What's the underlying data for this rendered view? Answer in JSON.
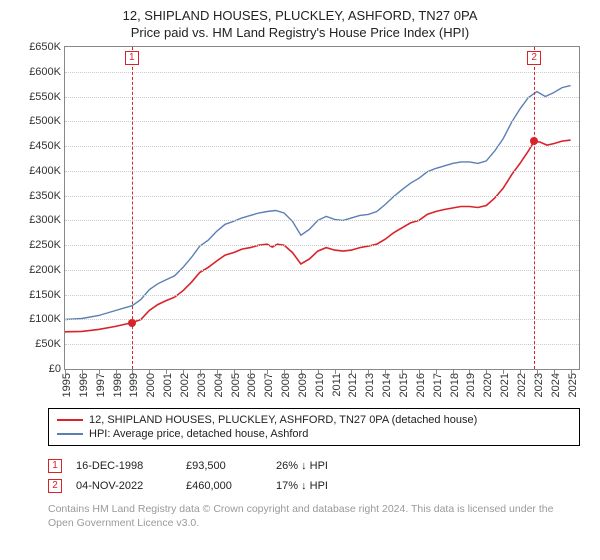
{
  "title": {
    "line1": "12, SHIPLAND HOUSES, PLUCKLEY, ASHFORD, TN27 0PA",
    "line2": "Price paid vs. HM Land Registry's House Price Index (HPI)",
    "fontsize": 13,
    "color": "#222222"
  },
  "chart": {
    "type": "line",
    "background_color": "#ffffff",
    "grid_color": "#cccccc",
    "axis_color": "#888888",
    "tick_fontsize": 11,
    "ylim": [
      0,
      650000
    ],
    "ytick_step": 50000,
    "yticks": [
      {
        "v": 0,
        "label": "£0"
      },
      {
        "v": 50000,
        "label": "£50K"
      },
      {
        "v": 100000,
        "label": "£100K"
      },
      {
        "v": 150000,
        "label": "£150K"
      },
      {
        "v": 200000,
        "label": "£200K"
      },
      {
        "v": 250000,
        "label": "£250K"
      },
      {
        "v": 300000,
        "label": "£300K"
      },
      {
        "v": 350000,
        "label": "£350K"
      },
      {
        "v": 400000,
        "label": "£400K"
      },
      {
        "v": 450000,
        "label": "£450K"
      },
      {
        "v": 500000,
        "label": "£500K"
      },
      {
        "v": 550000,
        "label": "£550K"
      },
      {
        "v": 600000,
        "label": "£600K"
      },
      {
        "v": 650000,
        "label": "£650K"
      }
    ],
    "xlim": [
      1995,
      2025.5
    ],
    "xticks": [
      1995,
      1996,
      1997,
      1998,
      1999,
      2000,
      2001,
      2002,
      2003,
      2004,
      2005,
      2006,
      2007,
      2008,
      2009,
      2010,
      2011,
      2012,
      2013,
      2014,
      2015,
      2016,
      2017,
      2018,
      2019,
      2020,
      2021,
      2022,
      2023,
      2024,
      2025
    ],
    "series": [
      {
        "name": "price_paid",
        "label": "12, SHIPLAND HOUSES, PLUCKLEY, ASHFORD, TN27 0PA (detached house)",
        "color": "#d8232a",
        "line_width": 1.6,
        "points": [
          [
            1995.0,
            75000
          ],
          [
            1996.0,
            76000
          ],
          [
            1997.0,
            80000
          ],
          [
            1998.0,
            86000
          ],
          [
            1998.96,
            93500
          ],
          [
            1999.5,
            100000
          ],
          [
            2000.0,
            118000
          ],
          [
            2000.5,
            130000
          ],
          [
            2001.0,
            138000
          ],
          [
            2001.5,
            145000
          ],
          [
            2002.0,
            158000
          ],
          [
            2002.5,
            175000
          ],
          [
            2003.0,
            195000
          ],
          [
            2003.5,
            205000
          ],
          [
            2004.0,
            218000
          ],
          [
            2004.5,
            230000
          ],
          [
            2005.0,
            235000
          ],
          [
            2005.5,
            242000
          ],
          [
            2006.0,
            245000
          ],
          [
            2006.5,
            250000
          ],
          [
            2007.0,
            252000
          ],
          [
            2007.3,
            246000
          ],
          [
            2007.6,
            252000
          ],
          [
            2008.0,
            250000
          ],
          [
            2008.5,
            235000
          ],
          [
            2009.0,
            212000
          ],
          [
            2009.5,
            222000
          ],
          [
            2010.0,
            238000
          ],
          [
            2010.5,
            245000
          ],
          [
            2011.0,
            240000
          ],
          [
            2011.5,
            238000
          ],
          [
            2012.0,
            240000
          ],
          [
            2012.5,
            245000
          ],
          [
            2013.0,
            248000
          ],
          [
            2013.5,
            252000
          ],
          [
            2014.0,
            262000
          ],
          [
            2014.5,
            275000
          ],
          [
            2015.0,
            285000
          ],
          [
            2015.5,
            295000
          ],
          [
            2016.0,
            300000
          ],
          [
            2016.5,
            312000
          ],
          [
            2017.0,
            318000
          ],
          [
            2017.5,
            322000
          ],
          [
            2018.0,
            325000
          ],
          [
            2018.5,
            328000
          ],
          [
            2019.0,
            328000
          ],
          [
            2019.5,
            326000
          ],
          [
            2020.0,
            330000
          ],
          [
            2020.5,
            345000
          ],
          [
            2021.0,
            365000
          ],
          [
            2021.5,
            392000
          ],
          [
            2022.0,
            415000
          ],
          [
            2022.5,
            440000
          ],
          [
            2022.84,
            460000
          ],
          [
            2023.2,
            458000
          ],
          [
            2023.6,
            452000
          ],
          [
            2024.0,
            455000
          ],
          [
            2024.5,
            460000
          ],
          [
            2025.0,
            462000
          ]
        ]
      },
      {
        "name": "hpi",
        "label": "HPI: Average price, detached house, Ashford",
        "color": "#5b7fb5",
        "line_width": 1.4,
        "points": [
          [
            1995.0,
            100000
          ],
          [
            1996.0,
            102000
          ],
          [
            1997.0,
            108000
          ],
          [
            1998.0,
            118000
          ],
          [
            1999.0,
            128000
          ],
          [
            1999.5,
            140000
          ],
          [
            2000.0,
            160000
          ],
          [
            2000.5,
            172000
          ],
          [
            2001.0,
            180000
          ],
          [
            2001.5,
            188000
          ],
          [
            2002.0,
            205000
          ],
          [
            2002.5,
            225000
          ],
          [
            2003.0,
            248000
          ],
          [
            2003.5,
            260000
          ],
          [
            2004.0,
            278000
          ],
          [
            2004.5,
            292000
          ],
          [
            2005.0,
            298000
          ],
          [
            2005.5,
            305000
          ],
          [
            2006.0,
            310000
          ],
          [
            2006.5,
            315000
          ],
          [
            2007.0,
            318000
          ],
          [
            2007.5,
            320000
          ],
          [
            2008.0,
            315000
          ],
          [
            2008.5,
            298000
          ],
          [
            2009.0,
            270000
          ],
          [
            2009.5,
            282000
          ],
          [
            2010.0,
            300000
          ],
          [
            2010.5,
            308000
          ],
          [
            2011.0,
            302000
          ],
          [
            2011.5,
            300000
          ],
          [
            2012.0,
            305000
          ],
          [
            2012.5,
            310000
          ],
          [
            2013.0,
            312000
          ],
          [
            2013.5,
            318000
          ],
          [
            2014.0,
            332000
          ],
          [
            2014.5,
            348000
          ],
          [
            2015.0,
            362000
          ],
          [
            2015.5,
            375000
          ],
          [
            2016.0,
            385000
          ],
          [
            2016.5,
            398000
          ],
          [
            2017.0,
            405000
          ],
          [
            2017.5,
            410000
          ],
          [
            2018.0,
            415000
          ],
          [
            2018.5,
            418000
          ],
          [
            2019.0,
            418000
          ],
          [
            2019.5,
            415000
          ],
          [
            2020.0,
            420000
          ],
          [
            2020.5,
            440000
          ],
          [
            2021.0,
            465000
          ],
          [
            2021.5,
            498000
          ],
          [
            2022.0,
            525000
          ],
          [
            2022.5,
            548000
          ],
          [
            2023.0,
            560000
          ],
          [
            2023.5,
            550000
          ],
          [
            2024.0,
            558000
          ],
          [
            2024.5,
            568000
          ],
          [
            2025.0,
            572000
          ]
        ]
      }
    ],
    "markers": [
      {
        "id": "1",
        "x": 1998.96,
        "y": 93500,
        "color": "#d8232a"
      },
      {
        "id": "2",
        "x": 2022.84,
        "y": 460000,
        "color": "#d8232a"
      }
    ]
  },
  "legend": {
    "border_color": "#000000",
    "fontsize": 11,
    "items": [
      {
        "color": "#d8232a",
        "label": "12, SHIPLAND HOUSES, PLUCKLEY, ASHFORD, TN27 0PA (detached house)"
      },
      {
        "color": "#5b7fb5",
        "label": "HPI: Average price, detached house, Ashford"
      }
    ]
  },
  "events": {
    "fontsize": 11,
    "rows": [
      {
        "id": "1",
        "color": "#d8232a",
        "date": "16-DEC-1998",
        "price": "£93,500",
        "pct": "26%",
        "arrow": "↓",
        "suffix": "HPI"
      },
      {
        "id": "2",
        "color": "#d8232a",
        "date": "04-NOV-2022",
        "price": "£460,000",
        "pct": "17%",
        "arrow": "↓",
        "suffix": "HPI"
      }
    ]
  },
  "footnote": {
    "text": "Contains HM Land Registry data © Crown copyright and database right 2024. This data is licensed under the Open Government Licence v3.0.",
    "color": "#9a9a9a",
    "fontsize": 10.5
  }
}
